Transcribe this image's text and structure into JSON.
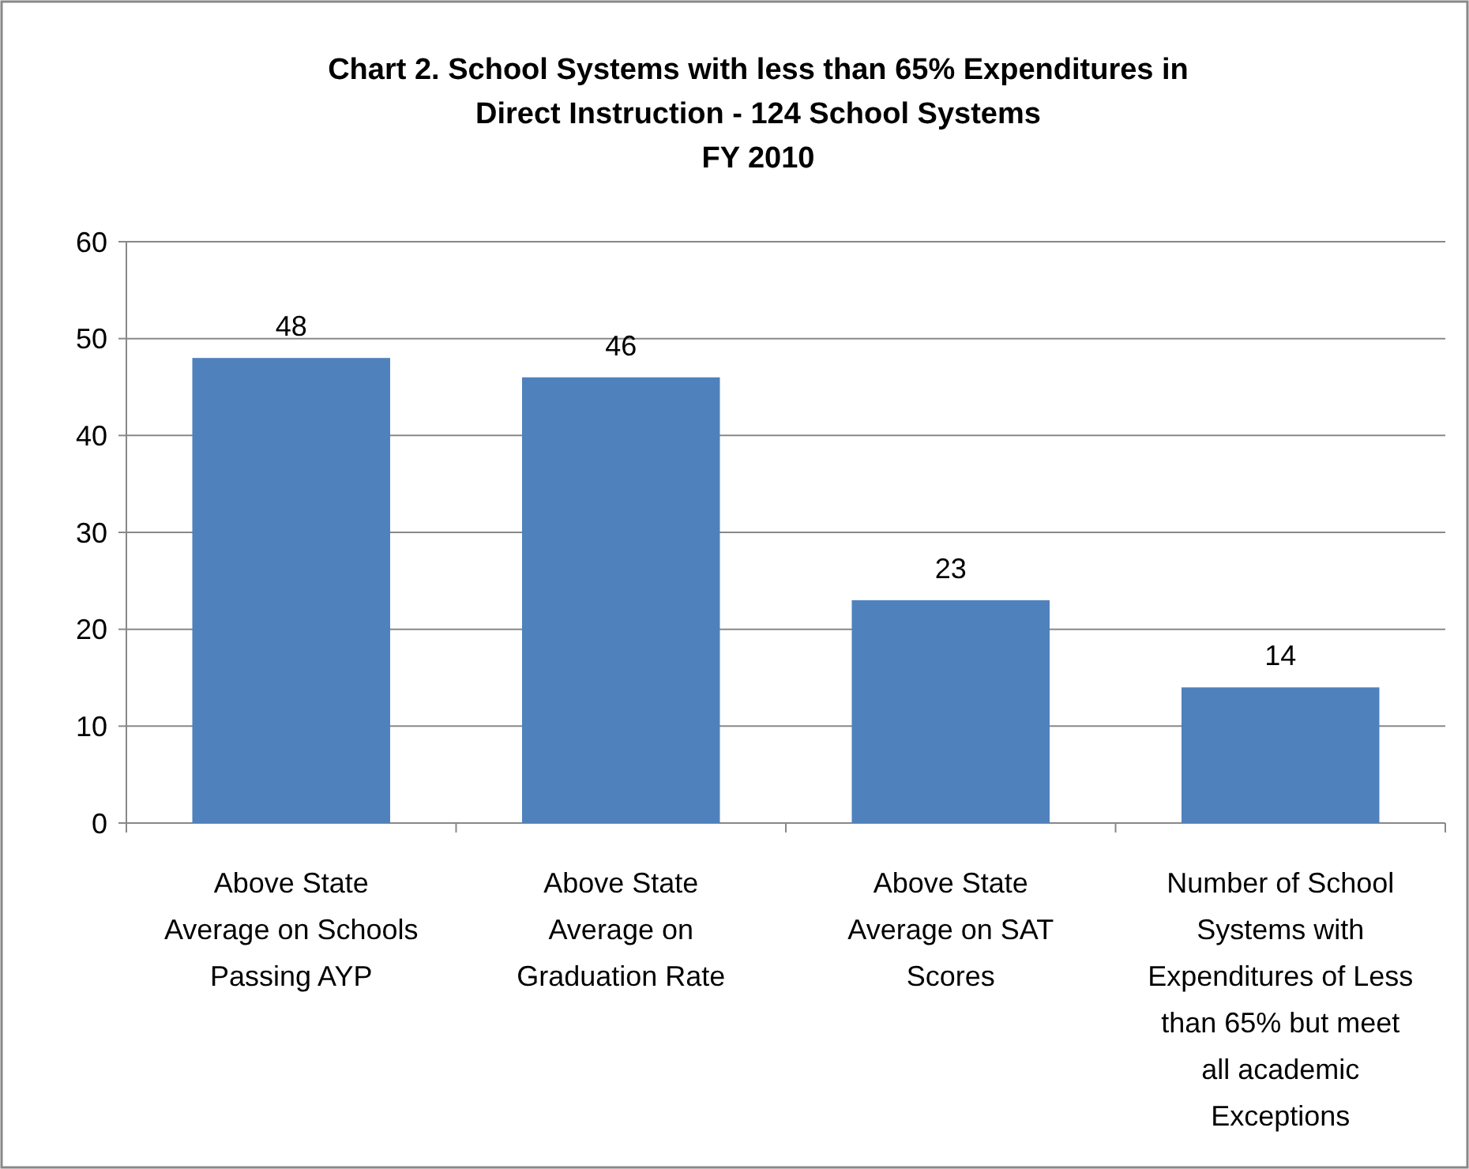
{
  "chart_data": {
    "type": "bar",
    "title": "Chart 2. School Systems with less than 65% Expenditures in\nDirect Instruction - 124 School Systems\nFY 2010",
    "categories": [
      "Above State\nAverage on Schools\nPassing AYP",
      "Above State\nAverage on\nGraduation Rate",
      "Above State\nAverage on SAT\nScores",
      "Number of School\nSystems with\nExpenditures of Less\nthan 65% but meet\nall academic\nExceptions"
    ],
    "values": [
      48,
      46,
      23,
      14
    ],
    "color": "#4f81bd",
    "ylim": [
      0,
      60
    ],
    "yticks": [
      0,
      10,
      20,
      30,
      40,
      50,
      60
    ],
    "grid": "y",
    "data_labels": true
  }
}
